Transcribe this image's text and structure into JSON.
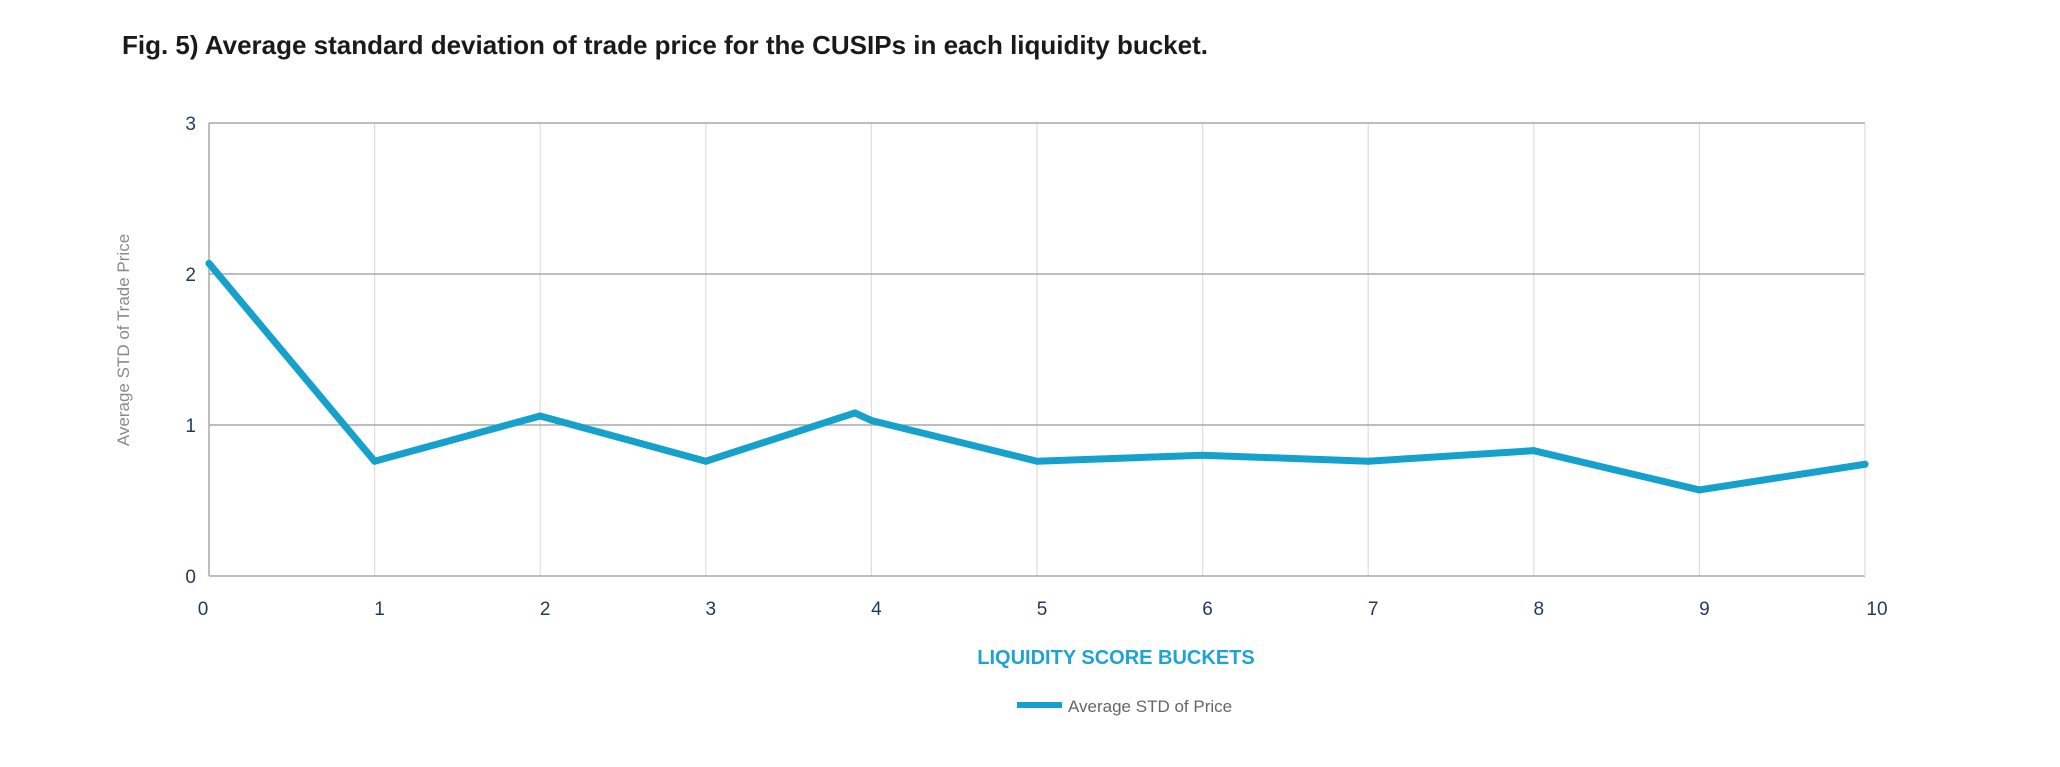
{
  "chart_data": {
    "type": "line",
    "title": "Fig. 5) Average standard deviation of trade price for the CUSIPs in each liquidity bucket.",
    "xlabel": "LIQUIDITY SCORE BUCKETS",
    "ylabel": "Average STD of Trade Price",
    "x_ticks": [
      "0",
      "1",
      "2",
      "3",
      "4",
      "5",
      "6",
      "7",
      "8",
      "9",
      "10"
    ],
    "y_ticks": [
      "0",
      "1",
      "2",
      "3"
    ],
    "xlim": [
      0,
      10
    ],
    "ylim": [
      0,
      3
    ],
    "grid": true,
    "legend_position": "bottom-center",
    "series": [
      {
        "name": "Average STD of Price",
        "color": "#16a0cc",
        "x": [
          0,
          1,
          2,
          3,
          3.9,
          4,
          5,
          6,
          7,
          8,
          9,
          10
        ],
        "values": [
          2.07,
          0.76,
          1.06,
          0.76,
          1.08,
          1.03,
          0.76,
          0.8,
          0.76,
          0.83,
          0.57,
          0.74
        ]
      }
    ]
  },
  "colors": {
    "grid_major": "#a9a9a9",
    "grid_minor": "#dddddd",
    "axis": "#a9a9a9",
    "tick_text": "#1f3a5f",
    "xlabel_text": "#1ea3d4",
    "ylabel_text": "#8a8a8a"
  }
}
